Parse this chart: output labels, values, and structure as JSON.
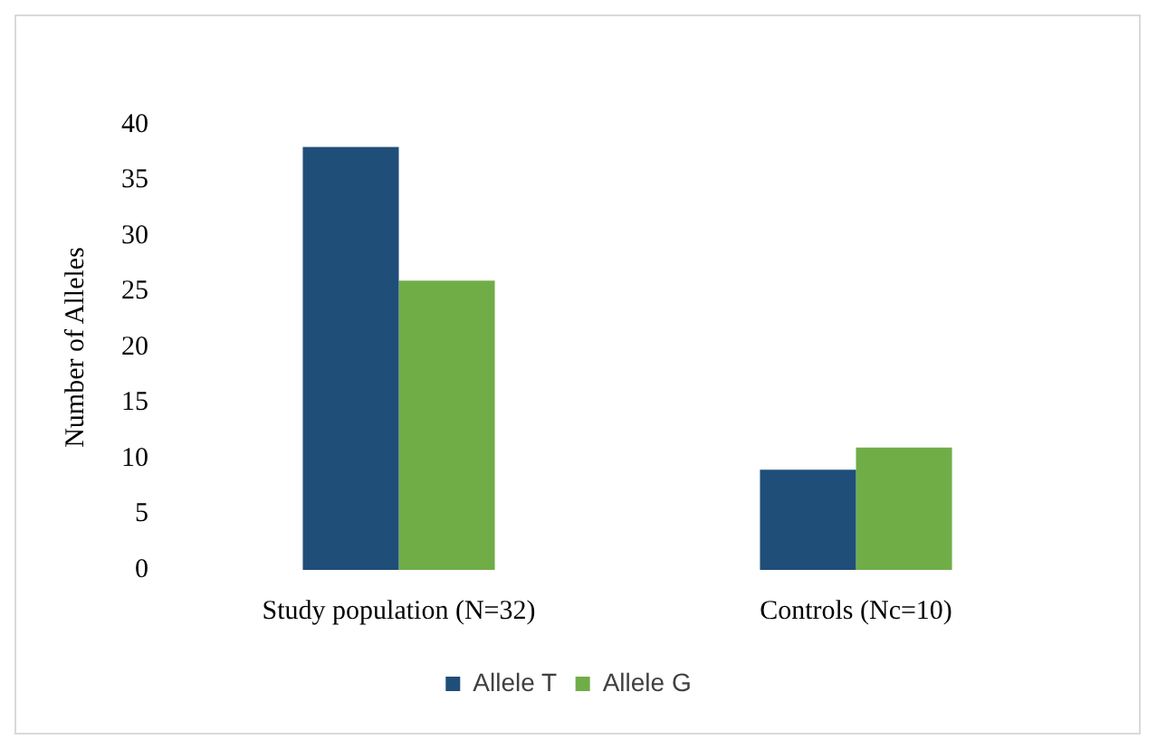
{
  "chart_data": {
    "type": "bar",
    "ylabel": "Number of Alleles",
    "categories": [
      "Study population (N=32)",
      "Controls (Nc=10)"
    ],
    "series": [
      {
        "name": "Allele T",
        "color": "#1f4e79",
        "values": [
          38,
          9
        ]
      },
      {
        "name": "Allele G",
        "color": "#70ad47",
        "values": [
          26,
          11
        ]
      }
    ],
    "ylim": [
      0,
      40
    ],
    "yticks": [
      0,
      5,
      10,
      15,
      20,
      25,
      30,
      35,
      40
    ],
    "grid": false,
    "legend": "bottom"
  }
}
